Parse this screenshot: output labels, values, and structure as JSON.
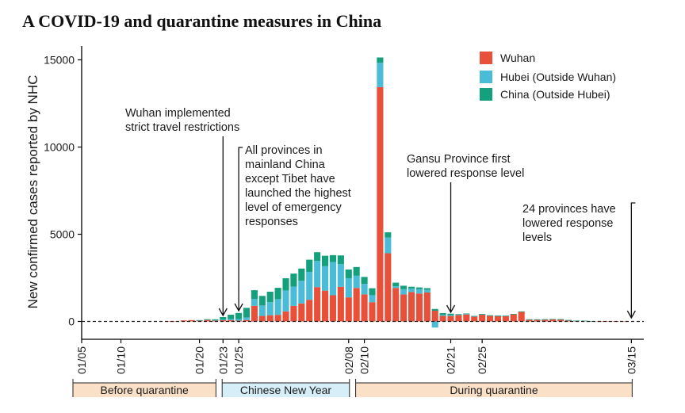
{
  "figure": {
    "panel_label": "A",
    "title": "COVID-19 and quarantine measures in China"
  },
  "colors": {
    "wuhan": "#e8503a",
    "hubei": "#4bbcd8",
    "china": "#14a07d",
    "before": "#fbe0c8",
    "cny": "#d5eef8",
    "during": "#fbe0c8",
    "axis": "#000000"
  },
  "chart_data": {
    "type": "bar",
    "stacked": true,
    "title": "COVID-19 and quarantine measures in China",
    "xlabel": "",
    "ylabel": "New confirmed cases reported by NHC",
    "ylim": [
      -500,
      15700
    ],
    "yticks": [
      0,
      5000,
      10000,
      15000
    ],
    "x_start": "01/05",
    "x_end": "03/15",
    "x_ticks": [
      "01/05",
      "01/10",
      "01/20",
      "01/23",
      "01/25",
      "02/08",
      "02/10",
      "02/21",
      "02/25",
      "03/15"
    ],
    "x_tick_days": [
      0,
      5,
      15,
      18,
      20,
      34,
      36,
      47,
      51,
      70
    ],
    "categories": [
      "01/05",
      "01/06",
      "01/07",
      "01/08",
      "01/09",
      "01/10",
      "01/11",
      "01/12",
      "01/13",
      "01/14",
      "01/15",
      "01/16",
      "01/17",
      "01/18",
      "01/19",
      "01/20",
      "01/21",
      "01/22",
      "01/23",
      "01/24",
      "01/25",
      "01/26",
      "01/27",
      "01/28",
      "01/29",
      "01/30",
      "01/31",
      "02/01",
      "02/02",
      "02/03",
      "02/04",
      "02/05",
      "02/06",
      "02/07",
      "02/08",
      "02/09",
      "02/10",
      "02/11",
      "02/12",
      "02/13",
      "02/14",
      "02/15",
      "02/16",
      "02/17",
      "02/18",
      "02/19",
      "02/20",
      "02/21",
      "02/22",
      "02/23",
      "02/24",
      "02/25",
      "02/26",
      "02/27",
      "02/28",
      "02/29",
      "03/01",
      "03/02",
      "03/03",
      "03/04",
      "03/05",
      "03/06",
      "03/07",
      "03/08",
      "03/09",
      "03/10",
      "03/11",
      "03/12",
      "03/13",
      "03/14",
      "03/15"
    ],
    "series": [
      {
        "name": "Wuhan",
        "values": [
          0,
          0,
          0,
          0,
          0,
          0,
          0,
          0,
          0,
          0,
          0,
          4,
          17,
          59,
          77,
          60,
          105,
          62,
          70,
          77,
          46,
          80,
          892,
          315,
          356,
          378,
          576,
          894,
          1033,
          1242,
          1967,
          1766,
          1501,
          1985,
          1379,
          1921,
          1552,
          1104,
          13436,
          3910,
          1923,
          1548,
          1690,
          1600,
          1660,
          615,
          319,
          314,
          366,
          405,
          277,
          401,
          334,
          318,
          313,
          420,
          565,
          114,
          111,
          115,
          131,
          126,
          74,
          41,
          36,
          17,
          8,
          8,
          5,
          4,
          0
        ]
      },
      {
        "name": "Hubei (Outside Wuhan)",
        "values": [
          0,
          0,
          0,
          0,
          0,
          0,
          0,
          0,
          0,
          0,
          0,
          0,
          0,
          0,
          0,
          2,
          3,
          10,
          30,
          60,
          90,
          150,
          400,
          600,
          750,
          900,
          1200,
          1100,
          1300,
          1600,
          1500,
          1400,
          1900,
          1300,
          1100,
          700,
          600,
          400,
          1400,
          900,
          100,
          300,
          200,
          250,
          150,
          -350,
          60,
          50,
          30,
          20,
          20,
          10,
          10,
          10,
          10,
          10,
          5,
          5,
          5,
          5,
          5,
          2,
          2,
          2,
          1,
          1,
          0,
          0,
          0,
          0,
          0
        ]
      },
      {
        "name": "China (Outside Hubei)",
        "values": [
          0,
          0,
          0,
          0,
          0,
          0,
          0,
          0,
          0,
          0,
          0,
          0,
          0,
          0,
          0,
          15,
          20,
          50,
          150,
          250,
          350,
          550,
          500,
          550,
          600,
          650,
          700,
          750,
          700,
          700,
          500,
          600,
          400,
          500,
          500,
          500,
          400,
          400,
          300,
          300,
          200,
          200,
          100,
          100,
          100,
          100,
          100,
          80,
          30,
          30,
          20,
          20,
          10,
          10,
          10,
          5,
          5,
          5,
          5,
          5,
          5,
          5,
          5,
          5,
          2,
          2,
          0,
          0,
          0,
          0,
          0
        ]
      }
    ],
    "annotations": [
      {
        "lines": [
          "Wuhan implemented",
          "strict travel restrictions"
        ],
        "date": "01/23"
      },
      {
        "lines": [
          "All provinces in",
          "mainland China",
          "except Tibet have",
          "launched the highest",
          "level of emergency",
          "responses"
        ],
        "date": "01/25"
      },
      {
        "lines": [
          "Gansu Province first",
          "lowered response level"
        ],
        "date": "02/21"
      },
      {
        "lines": [
          "24 provinces have",
          "lowered response",
          "levels"
        ],
        "date": "03/15"
      }
    ],
    "periods": [
      {
        "label": "Before quarantine",
        "start": "01/05",
        "end": "01/22"
      },
      {
        "label": "Chinese New Year",
        "start": "01/24",
        "end": "02/08"
      },
      {
        "label": "During quarantine",
        "start": "02/10",
        "end": "03/15"
      }
    ],
    "legend": {
      "position": "top-right",
      "items": [
        "Wuhan",
        "Hubei (Outside Wuhan)",
        "China (Outside Hubei)"
      ]
    }
  }
}
